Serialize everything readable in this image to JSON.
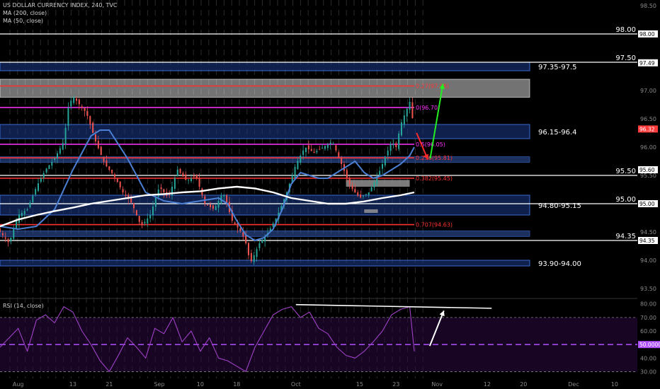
{
  "chart_data": {
    "type": "line",
    "title": "US DOLLAR CURRENCY INDEX, 240, TVC",
    "indicators": [
      "MA (200, close)",
      "MA (50, close)"
    ],
    "y_ticks": [
      93.5,
      94.0,
      94.5,
      95.0,
      95.5,
      96.0,
      96.5,
      97.0,
      97.5,
      98.0,
      98.5
    ],
    "ylim": [
      93.35,
      98.6
    ],
    "x_labels": [
      {
        "label": "Aug",
        "day": 0
      },
      {
        "label": "13",
        "day": 12
      },
      {
        "label": "21",
        "day": 20
      },
      {
        "label": "Sep",
        "day": 31
      },
      {
        "label": "10",
        "day": 40
      },
      {
        "label": "18",
        "day": 48
      },
      {
        "label": "Oct",
        "day": 61
      },
      {
        "label": "15",
        "day": 75
      },
      {
        "label": "23",
        "day": 83
      },
      {
        "label": "Nov",
        "day": 92
      },
      {
        "label": "12",
        "day": 103
      },
      {
        "label": "20",
        "day": 111
      },
      {
        "label": "Dec",
        "day": 122
      },
      {
        "label": "10",
        "day": 131
      }
    ],
    "xlim": [
      -4,
      136
    ],
    "price_series": {
      "name": "DXY",
      "x": [
        -4,
        -2,
        0,
        2,
        4,
        6,
        8,
        10,
        11,
        12,
        13,
        15,
        17,
        19,
        21,
        23,
        25,
        27,
        29,
        31,
        33,
        35,
        37,
        39,
        41,
        43,
        45,
        47,
        49,
        50,
        51,
        53,
        55,
        57,
        59,
        61,
        63,
        65,
        67,
        69,
        71,
        73,
        75,
        77,
        79,
        81,
        82,
        83,
        84,
        85,
        86,
        87
      ],
      "values": [
        94.5,
        94.3,
        94.8,
        94.9,
        95.3,
        95.6,
        95.8,
        96.1,
        96.7,
        96.9,
        96.8,
        96.6,
        96.1,
        95.7,
        95.5,
        95.2,
        95.0,
        94.6,
        94.8,
        95.3,
        95.1,
        95.6,
        95.4,
        95.5,
        95.0,
        94.9,
        95.2,
        94.7,
        94.5,
        94.3,
        93.95,
        94.3,
        94.5,
        94.8,
        95.2,
        95.7,
        96.0,
        95.9,
        96.0,
        96.1,
        95.7,
        95.3,
        95.1,
        95.2,
        95.5,
        95.9,
        96.1,
        96.0,
        96.4,
        96.6,
        96.8,
        96.32
      ]
    },
    "ma50": {
      "name": "MA (50, close)",
      "x": [
        -4,
        0,
        4,
        8,
        12,
        16,
        18,
        20,
        24,
        28,
        32,
        36,
        40,
        44,
        46,
        48,
        50,
        52,
        54,
        56,
        58,
        60,
        62,
        64,
        66,
        68,
        70,
        72,
        74,
        76,
        78,
        80,
        82,
        84,
        86,
        87
      ],
      "values": [
        94.6,
        94.55,
        94.6,
        94.9,
        95.6,
        96.2,
        96.3,
        96.3,
        95.8,
        95.2,
        95.05,
        95.0,
        95.05,
        95.1,
        95.0,
        94.7,
        94.45,
        94.35,
        94.4,
        94.55,
        94.9,
        95.35,
        95.55,
        95.5,
        95.45,
        95.45,
        95.55,
        95.65,
        95.75,
        95.55,
        95.45,
        95.5,
        95.6,
        95.7,
        95.85,
        96.0
      ]
    },
    "ma200": {
      "name": "MA (200, close)",
      "x": [
        -4,
        0,
        4,
        8,
        12,
        16,
        20,
        24,
        28,
        32,
        36,
        40,
        44,
        48,
        52,
        56,
        60,
        64,
        68,
        72,
        76,
        80,
        84,
        87
      ],
      "values": [
        94.6,
        94.72,
        94.8,
        94.87,
        94.93,
        95.0,
        95.05,
        95.1,
        95.15,
        95.17,
        95.2,
        95.22,
        95.27,
        95.3,
        95.27,
        95.2,
        95.1,
        95.05,
        95.0,
        95.0,
        95.04,
        95.1,
        95.15,
        95.2
      ]
    },
    "levels": [
      {
        "name": "98.00",
        "value": 98.0,
        "color": "#ffffff",
        "label": "98.00"
      },
      {
        "name": "97.50",
        "value": 97.5,
        "color": "#ffffff",
        "label": "97.50"
      },
      {
        "name": "95.50",
        "value": 95.5,
        "color": "#ffffff",
        "label": "95.50"
      },
      {
        "name": "95.00",
        "value": 95.0,
        "color": "#ffffff",
        "label": "95.00"
      },
      {
        "name": "94.35",
        "value": 94.35,
        "color": "#ffffff",
        "label": "94.35"
      }
    ],
    "fib_levels": [
      {
        "ratio_label": "0.27(97.08)",
        "value": 97.08,
        "color": "#ff3333"
      },
      {
        "ratio_label": "0(96.70)",
        "value": 96.7,
        "color": "#ff33ff"
      },
      {
        "ratio_label": "0.5(96.05)",
        "value": 96.05,
        "color": "#ff33ff"
      },
      {
        "ratio_label": "0.236(95.81)",
        "value": 95.81,
        "color": "#ff3333"
      },
      {
        "ratio_label": "0.382(95.45)",
        "value": 95.45,
        "color": "#ff3333"
      },
      {
        "ratio_label": "0.707(94.63)",
        "value": 94.63,
        "color": "#ff3333"
      }
    ],
    "zones": [
      {
        "label": "97.35-97.5",
        "low": 97.35,
        "high": 97.5
      },
      {
        "label": "96.15-96.4",
        "low": 96.15,
        "high": 96.4
      },
      {
        "label": "94.80-95.15",
        "low": 94.8,
        "high": 95.15
      },
      {
        "label": "93.90-94.00",
        "low": 93.9,
        "high": 94.0
      }
    ],
    "extra_zones": [
      {
        "low": 96.88,
        "high": 97.2,
        "color": "#ffffff"
      },
      {
        "low": 95.73,
        "high": 95.83,
        "color": "#3b6ad1"
      },
      {
        "low": 94.42,
        "high": 94.52,
        "color": "#3b6ad1"
      }
    ],
    "axis_badges": [
      {
        "label": "98.00",
        "value": 98.0,
        "bg": "#ffffff",
        "fg": "#000000"
      },
      {
        "label": "97.49",
        "value": 97.49,
        "bg": "#ffffff",
        "fg": "#000000"
      },
      {
        "label": "96.32",
        "value": 96.32,
        "bg": "#ff3b3b",
        "fg": "#ffffff"
      },
      {
        "label": "95.60",
        "value": 95.6,
        "bg": "#ffffff",
        "fg": "#000000"
      },
      {
        "label": "95.00",
        "value": 95.0,
        "bg": "#ffffff",
        "fg": "#000000"
      },
      {
        "label": "94.35",
        "value": 94.35,
        "bg": "#ffffff",
        "fg": "#000000"
      }
    ],
    "rsi": {
      "name": "RSI (14, close)",
      "y_ticks": [
        30.0,
        40.0,
        50.0,
        60.0,
        70.0,
        80.0
      ],
      "ylim": [
        25,
        83
      ],
      "mid_badge": "50.0000",
      "x": [
        -4,
        -2,
        0,
        2,
        4,
        6,
        8,
        10,
        12,
        14,
        16,
        18,
        20,
        22,
        24,
        26,
        28,
        30,
        32,
        34,
        36,
        38,
        40,
        42,
        44,
        46,
        48,
        50,
        52,
        54,
        56,
        58,
        60,
        62,
        64,
        66,
        68,
        70,
        72,
        74,
        76,
        78,
        80,
        82,
        84,
        86,
        87
      ],
      "values": [
        48,
        55,
        62,
        45,
        68,
        72,
        66,
        78,
        74,
        60,
        50,
        38,
        30,
        42,
        55,
        48,
        40,
        62,
        58,
        70,
        52,
        60,
        45,
        55,
        40,
        38,
        34,
        30,
        48,
        60,
        72,
        76,
        78,
        70,
        74,
        62,
        58,
        48,
        42,
        40,
        45,
        52,
        60,
        72,
        76,
        78,
        45
      ],
      "overbought": 70,
      "oversold": 30
    }
  }
}
